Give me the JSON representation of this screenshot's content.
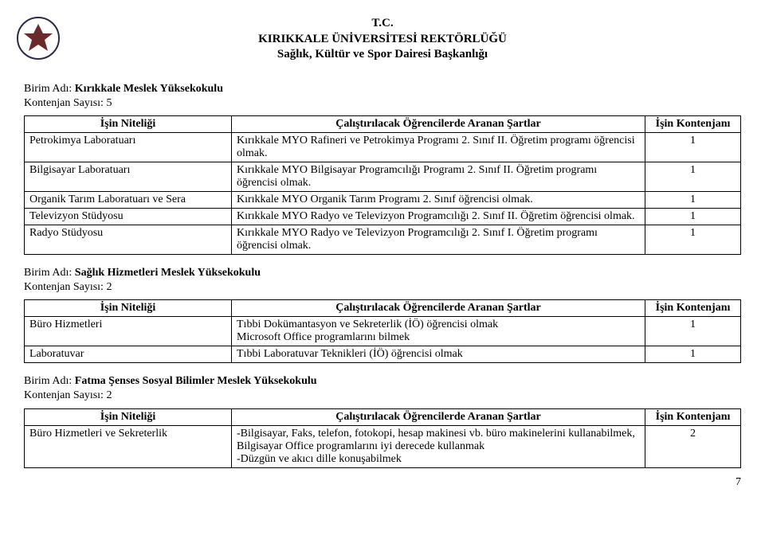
{
  "header": {
    "line1": "T.C.",
    "line2": "KIRIKKALE ÜNİVERSİTESİ REKTÖRLÜĞÜ",
    "line3": "Sağlık, Kültür ve Spor Dairesi Başkanlığı"
  },
  "labels": {
    "birim_adi": "Birim Adı:",
    "kontenjan_sayisi": "Kontenjan Sayısı:"
  },
  "columns": {
    "isin_niteligi": "İşin Niteliği",
    "sartlar": "Çalıştırılacak Öğrencilerde Aranan Şartlar",
    "kontenjan": "İşin Kontenjanı"
  },
  "section1": {
    "birim": "Kırıkkale Meslek Yüksekokulu",
    "kontenjan": "5",
    "rows": [
      {
        "job": "Petrokimya Laboratuarı",
        "cond": "Kırıkkale MYO Rafineri ve Petrokimya Programı 2. Sınıf II. Öğretim programı öğrencisi olmak.",
        "n": "1"
      },
      {
        "job": "Bilgisayar Laboratuarı",
        "cond": "Kırıkkale MYO Bilgisayar Programcılığı Programı 2. Sınıf II. Öğretim programı öğrencisi olmak.",
        "n": "1"
      },
      {
        "job": "Organik Tarım Laboratuarı ve Sera",
        "cond": "Kırıkkale MYO Organik Tarım Programı 2. Sınıf öğrencisi olmak.",
        "n": "1"
      },
      {
        "job": "Televizyon Stüdyosu",
        "cond": "Kırıkkale MYO Radyo ve Televizyon Programcılığı 2. Sınıf II. Öğretim öğrencisi olmak.",
        "n": "1"
      },
      {
        "job": "Radyo Stüdyosu",
        "cond": "Kırıkkale MYO Radyo ve Televizyon Programcılığı 2. Sınıf I. Öğretim programı öğrencisi olmak.",
        "n": "1"
      }
    ]
  },
  "section2": {
    "birim": "Sağlık Hizmetleri Meslek Yüksekokulu",
    "kontenjan": "2",
    "rows": [
      {
        "job": "Büro Hizmetleri",
        "cond": "Tıbbi Dokümantasyon ve Sekreterlik (İÖ) öğrencisi olmak\nMicrosoft Office programlarını bilmek",
        "n": "1"
      },
      {
        "job": "Laboratuvar",
        "cond": "Tıbbi Laboratuvar Teknikleri (İÖ) öğrencisi olmak",
        "n": "1"
      }
    ]
  },
  "section3": {
    "birim": "Fatma Şenses Sosyal Bilimler Meslek Yüksekokulu",
    "kontenjan": "2",
    "rows": [
      {
        "job": "Büro Hizmetleri ve Sekreterlik",
        "cond": "-Bilgisayar, Faks, telefon, fotokopi, hesap makinesi vb. büro makinelerini kullanabilmek, Bilgisayar Office programlarını iyi derecede kullanmak\n-Düzgün ve akıcı dille konuşabilmek",
        "n": "2"
      }
    ]
  },
  "page_number": "7"
}
